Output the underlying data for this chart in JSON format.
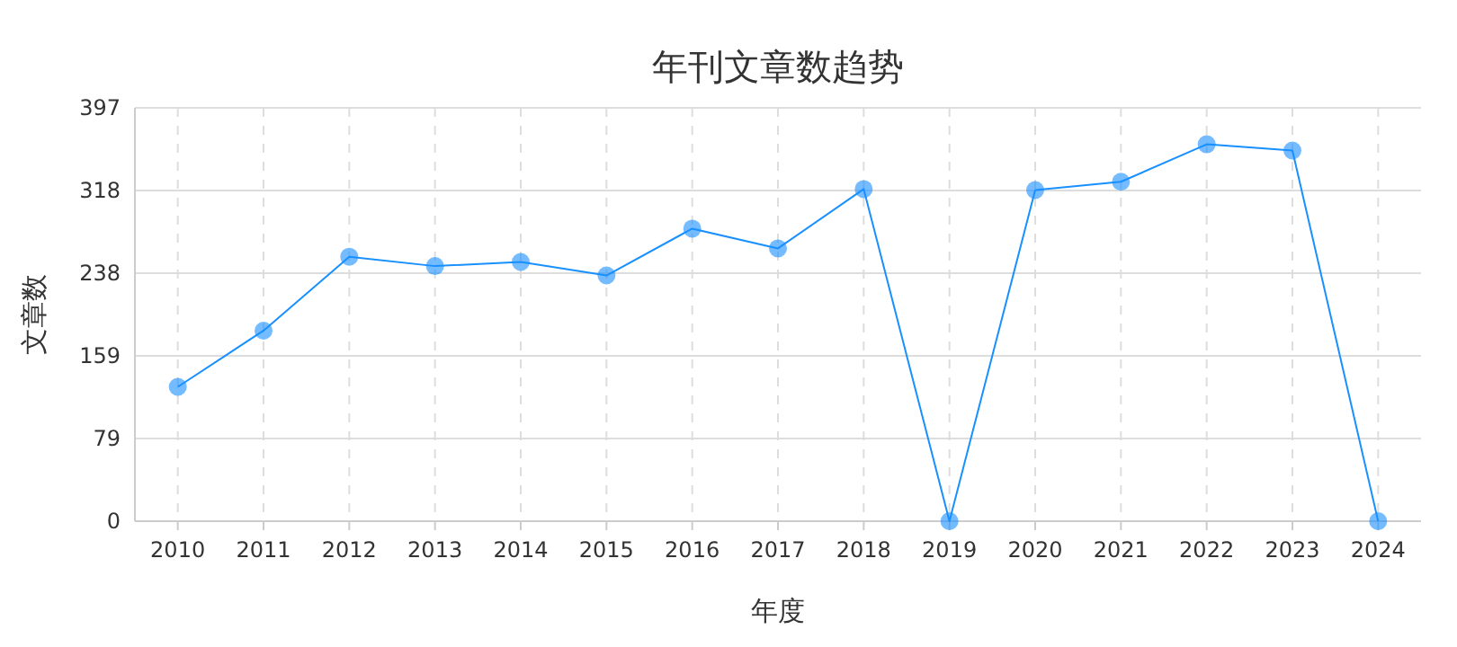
{
  "chart_data": {
    "type": "line",
    "title": "年刊文章数趋势",
    "xlabel": "年度",
    "ylabel": "文章数",
    "categories": [
      "2010",
      "2011",
      "2012",
      "2013",
      "2014",
      "2015",
      "2016",
      "2017",
      "2018",
      "2019",
      "2020",
      "2021",
      "2022",
      "2023",
      "2024"
    ],
    "series": [
      {
        "color": "#1890ff",
        "values": [
          129,
          183,
          254,
          245,
          249,
          236,
          281,
          262,
          319,
          0,
          318,
          326,
          362,
          356,
          0
        ]
      }
    ],
    "ylim": [
      0,
      397
    ],
    "yticks": [
      0,
      {
        "value": 79.4,
        "label": "79"
      },
      {
        "value": 158.8,
        "label": "159"
      },
      {
        "value": 238.2,
        "label": "238"
      },
      {
        "value": 317.6,
        "label": "318"
      },
      397
    ],
    "grid": true,
    "marker": "circle",
    "line_style": "solid"
  }
}
